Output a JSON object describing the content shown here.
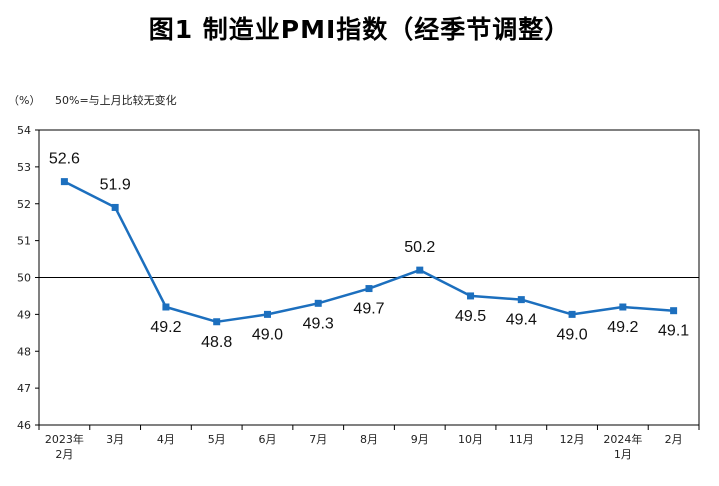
{
  "title": "图1  制造业PMI指数（经季节调整）",
  "unit_label": "（%）",
  "note": "50%=与上月比较无变化",
  "chart_data": {
    "type": "line",
    "title": "图1  制造业PMI指数（经季节调整）",
    "xlabel": "",
    "ylabel": "（%）",
    "ylim": [
      46,
      54
    ],
    "yticks": [
      46,
      47,
      48,
      49,
      50,
      51,
      52,
      53,
      54
    ],
    "reference_line": 50,
    "categories": [
      "2023年\n2月",
      "3月",
      "4月",
      "5月",
      "6月",
      "7月",
      "8月",
      "9月",
      "10月",
      "11月",
      "12月",
      "2024年\n1月",
      "2月"
    ],
    "series": [
      {
        "name": "制造业PMI",
        "color": "#1c6fbe",
        "values": [
          52.6,
          51.9,
          49.2,
          48.8,
          49.0,
          49.3,
          49.7,
          50.2,
          49.5,
          49.4,
          49.0,
          49.2,
          49.1
        ],
        "labels": [
          "52.6",
          "51.9",
          "49.2",
          "48.8",
          "49.0",
          "49.3",
          "49.7",
          "50.2",
          "49.5",
          "49.4",
          "49.0",
          "49.2",
          "49.1"
        ],
        "label_pos": [
          "above",
          "above",
          "below",
          "below",
          "below",
          "below",
          "below",
          "above",
          "below",
          "below",
          "below",
          "below",
          "below"
        ]
      }
    ]
  }
}
